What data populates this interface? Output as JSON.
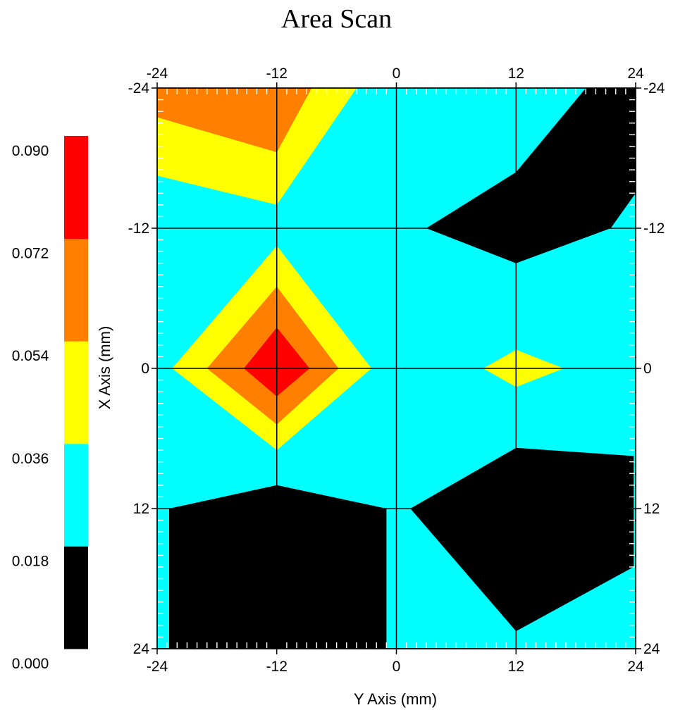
{
  "chart_data": {
    "type": "heatmap",
    "title": "Area Scan",
    "xlabel": "Y Axis (mm)",
    "ylabel": "X Axis (mm)",
    "x_range": [
      -24,
      24
    ],
    "y_range": [
      -24,
      24
    ],
    "y_direction": "top-to-bottom increasing",
    "x_ticks": [
      "-24",
      "-12",
      "0",
      "12",
      "24"
    ],
    "y_ticks": [
      "-24",
      "-12",
      "0",
      "12",
      "24"
    ],
    "grid": true,
    "colorbar": {
      "placement": "left",
      "levels": [
        {
          "from": 0.0,
          "to": 0.018,
          "color": "#000000"
        },
        {
          "from": 0.018,
          "to": 0.036,
          "color": "#00ffff"
        },
        {
          "from": 0.036,
          "to": 0.054,
          "color": "#ffff00"
        },
        {
          "from": 0.054,
          "to": 0.072,
          "color": "#ff8000"
        },
        {
          "from": 0.072,
          "to": 0.09,
          "color": "#ff0000"
        }
      ],
      "tick_labels": [
        "0.000",
        "0.018",
        "0.036",
        "0.054",
        "0.072",
        "0.090"
      ]
    },
    "background_color": "#00ffff",
    "regions": [
      {
        "level": "0.036-0.054",
        "color": "#ffff00",
        "points": [
          [
            -24,
            -24
          ],
          [
            -4,
            -24
          ],
          [
            -12,
            -14
          ],
          [
            -24,
            -16.5
          ]
        ]
      },
      {
        "level": "0.054-0.072",
        "color": "#ff8000",
        "points": [
          [
            -24,
            -24
          ],
          [
            -8.5,
            -24
          ],
          [
            -12,
            -18.5
          ],
          [
            -24,
            -21.5
          ]
        ]
      },
      {
        "level": "0.000-0.018",
        "color": "#000000",
        "points": [
          [
            19,
            -24
          ],
          [
            24,
            -24
          ],
          [
            24,
            -23.5
          ],
          [
            24,
            -15
          ],
          [
            21.5,
            -12
          ],
          [
            12,
            -9
          ],
          [
            3,
            -12
          ],
          [
            12,
            -16.8
          ]
        ]
      },
      {
        "level": "0.036-0.054",
        "color": "#ffff00",
        "points": [
          [
            -22.5,
            0
          ],
          [
            -12,
            -10.5
          ],
          [
            -2.5,
            0
          ],
          [
            -12,
            7
          ]
        ]
      },
      {
        "level": "0.054-0.072",
        "color": "#ff8000",
        "points": [
          [
            -19,
            0
          ],
          [
            -12,
            -7
          ],
          [
            -5.8,
            0
          ],
          [
            -12,
            4.8
          ]
        ]
      },
      {
        "level": "0.072-0.090",
        "color": "#ff0000",
        "points": [
          [
            -15.3,
            0
          ],
          [
            -12,
            -3.5
          ],
          [
            -8.7,
            0
          ],
          [
            -12,
            2.4
          ]
        ]
      },
      {
        "level": "0.036-0.054",
        "color": "#ffff00",
        "points": [
          [
            8.7,
            0
          ],
          [
            12,
            -1.6
          ],
          [
            16.8,
            0
          ],
          [
            12,
            1.6
          ]
        ]
      },
      {
        "level": "0.000-0.018",
        "color": "#000000",
        "points": [
          [
            -22.8,
            12
          ],
          [
            -12,
            10
          ],
          [
            -1,
            12
          ],
          [
            -1,
            24
          ],
          [
            -22.8,
            24
          ]
        ]
      },
      {
        "level": "0.000-0.018",
        "color": "#000000",
        "points": [
          [
            1.4,
            12
          ],
          [
            12,
            6.8
          ],
          [
            23.8,
            7.5
          ],
          [
            23.8,
            17
          ],
          [
            12,
            22.5
          ]
        ]
      }
    ]
  }
}
